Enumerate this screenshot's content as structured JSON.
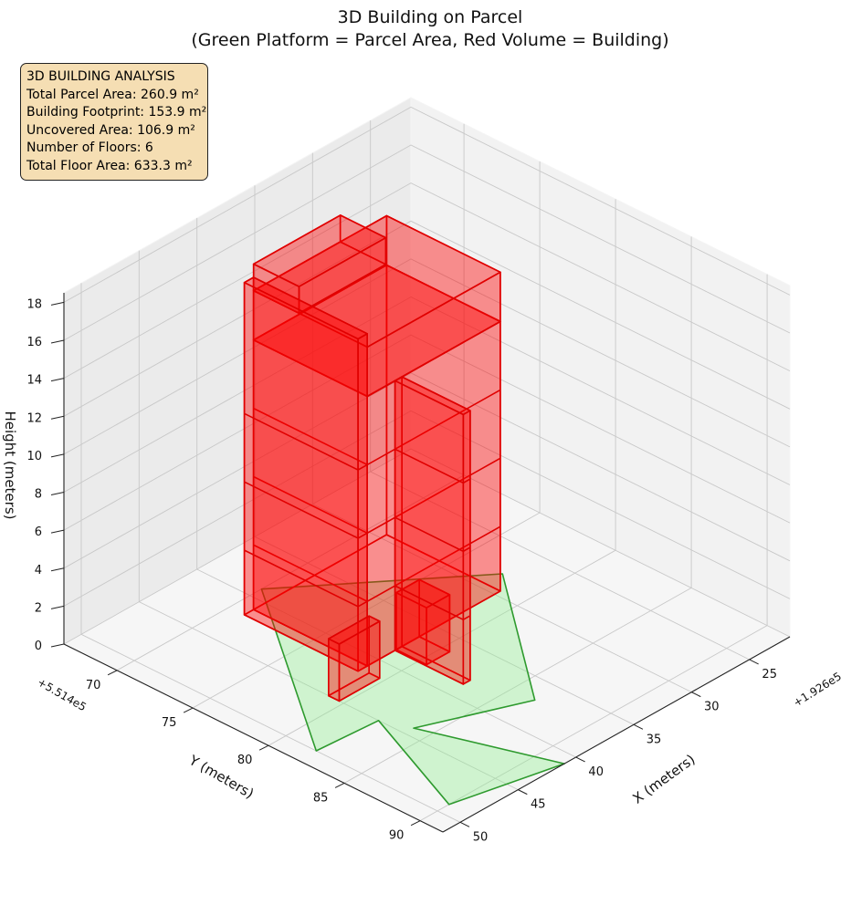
{
  "chart_data": {
    "type": "3d-bar",
    "title_lines": [
      "3D Building on Parcel",
      "(Green Platform = Parcel Area, Red Volume = Building)"
    ],
    "xlabel": "X (meters)",
    "ylabel": "Y (meters)",
    "zlabel": "Height (meters)",
    "x_offset": "+1.926e5",
    "y_offset": "+5.514e5",
    "x_ticks": [
      "25",
      "30",
      "35",
      "40",
      "45",
      "50"
    ],
    "y_ticks": [
      "70",
      "75",
      "80",
      "85",
      "90"
    ],
    "z_ticks": [
      "0",
      "2",
      "4",
      "6",
      "8",
      "10",
      "12",
      "14",
      "16",
      "18"
    ],
    "xlim": [
      21.5,
      51.5
    ],
    "ylim": [
      66.5,
      91.5
    ],
    "zlim": [
      0,
      18.5
    ],
    "parcel_color": "#90ee90",
    "parcel_edge_color": "#2e9a2e",
    "building_color": "#ff0000",
    "parcel_polygon": [
      [
        28,
        77.5
      ],
      [
        39,
        70
      ],
      [
        50,
        82
      ],
      [
        45,
        82.3
      ],
      [
        49,
        90
      ],
      [
        41,
        91.5
      ],
      [
        44.2,
        84
      ],
      [
        37,
        86.5
      ]
    ],
    "building_boxes": [
      {
        "x": [
          29.5,
          41
        ],
        "y": [
          71,
          78.5
        ],
        "z": [
          0,
          14.2
        ]
      },
      {
        "x": [
          29.5,
          41
        ],
        "y": [
          71,
          78.5
        ],
        "z": [
          14.2,
          16.8
        ]
      },
      {
        "x": [
          33.5,
          41
        ],
        "y": [
          71,
          74
        ],
        "z": [
          16.8,
          18.2
        ]
      },
      {
        "x": [
          41,
          41.8
        ],
        "y": [
          71,
          78.5
        ],
        "z": [
          0,
          17.5
        ]
      },
      {
        "x": [
          38,
          38.6
        ],
        "y": [
          78.5,
          83
        ],
        "z": [
          0,
          14.2
        ]
      },
      {
        "x": [
          36.5,
          38.5
        ],
        "y": [
          78.5,
          80.5
        ],
        "z": [
          0,
          3
        ]
      },
      {
        "x": [
          41.5,
          45
        ],
        "y": [
          79,
          79.7
        ],
        "z": [
          0,
          3
        ]
      }
    ]
  },
  "info_box": {
    "heading": "3D BUILDING ANALYSIS",
    "lines": [
      "Total Parcel Area: 260.9 m²",
      "Building Footprint: 153.9 m²",
      "Uncovered Area: 106.9 m²",
      "Number of Floors: 6",
      "Total Floor Area: 633.3 m²"
    ]
  }
}
